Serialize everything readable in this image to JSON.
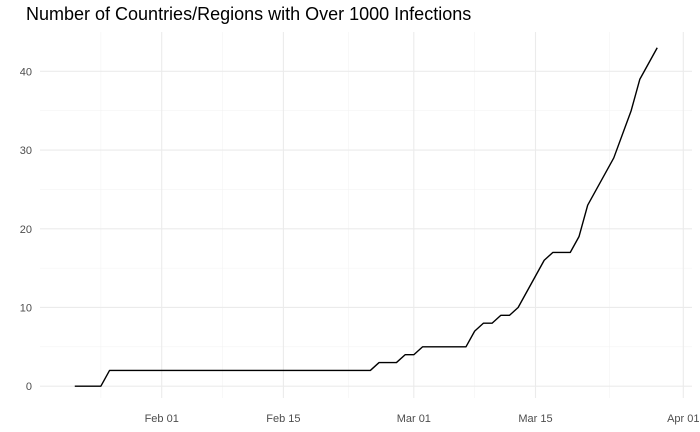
{
  "chart_data": {
    "type": "line",
    "title": "Number of Countries/Regions with Over 1000 Infections",
    "xlabel": "",
    "ylabel": "",
    "grid": true,
    "legend": "none",
    "line_color": "#000000",
    "grid_color": "#ebebeb",
    "xlim": [
      "2020-01-18",
      "2020-04-02"
    ],
    "ylim": [
      -1.5,
      45
    ],
    "x_ticks": [
      {
        "date": "2020-02-01",
        "label": "Feb 01"
      },
      {
        "date": "2020-02-15",
        "label": "Feb 15"
      },
      {
        "date": "2020-03-01",
        "label": "Mar 01"
      },
      {
        "date": "2020-03-15",
        "label": "Mar 15"
      },
      {
        "date": "2020-04-01",
        "label": "Apr 01"
      }
    ],
    "y_ticks": [
      0,
      10,
      20,
      30,
      40
    ],
    "series": [
      {
        "x": [
          "2020-01-22",
          "2020-01-25",
          "2020-01-26",
          "2020-02-25",
          "2020-02-26",
          "2020-02-27",
          "2020-02-28",
          "2020-02-29",
          "2020-03-01",
          "2020-03-02",
          "2020-03-07",
          "2020-03-08",
          "2020-03-09",
          "2020-03-10",
          "2020-03-11",
          "2020-03-12",
          "2020-03-13",
          "2020-03-16",
          "2020-03-17",
          "2020-03-19",
          "2020-03-20",
          "2020-03-21",
          "2020-03-24",
          "2020-03-26",
          "2020-03-27",
          "2020-03-28",
          "2020-03-29"
        ],
        "y": [
          0,
          0,
          2,
          2,
          3,
          3,
          3,
          4,
          4,
          5,
          5,
          7,
          8,
          8,
          9,
          9,
          10,
          16,
          17,
          17,
          19,
          23,
          29,
          35,
          39,
          41,
          43
        ]
      }
    ]
  }
}
